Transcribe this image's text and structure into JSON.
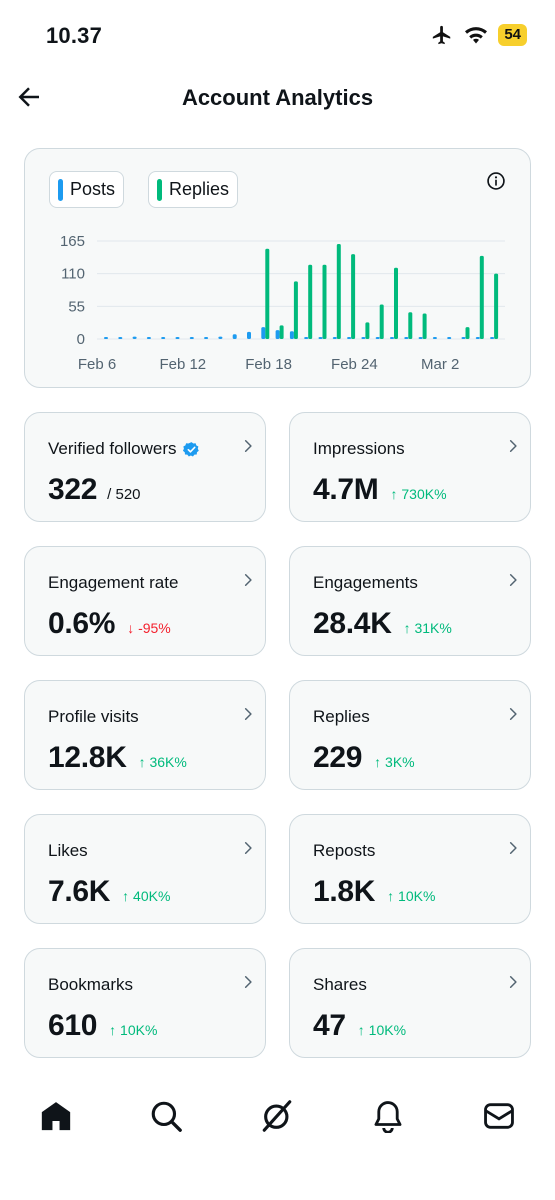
{
  "status_bar": {
    "time": "10.37",
    "battery": "54",
    "icons": [
      "airplane-icon",
      "wifi-icon",
      "battery-icon"
    ]
  },
  "header": {
    "title": "Account Analytics",
    "back_icon": "arrow-left-icon"
  },
  "chart_data": {
    "type": "bar",
    "title": "",
    "xlabel": "",
    "ylabel": "",
    "legend": [
      "Posts",
      "Replies"
    ],
    "y_ticks": [
      "165",
      "110",
      "55",
      "0"
    ],
    "ylim": [
      0,
      165
    ],
    "x_tick_labels": [
      "Feb 6",
      "Feb 12",
      "Feb 18",
      "Feb 24",
      "Mar 2"
    ],
    "categories": [
      "Feb 6",
      "Feb 7",
      "Feb 8",
      "Feb 9",
      "Feb 10",
      "Feb 11",
      "Feb 12",
      "Feb 13",
      "Feb 14",
      "Feb 15",
      "Feb 16",
      "Feb 17",
      "Feb 18",
      "Feb 19",
      "Feb 20",
      "Feb 21",
      "Feb 22",
      "Feb 23",
      "Feb 24",
      "Feb 25",
      "Feb 26",
      "Feb 27",
      "Feb 28",
      "Mar 1",
      "Mar 2",
      "Mar 3",
      "Mar 4",
      "Mar 5"
    ],
    "series": [
      {
        "name": "Posts",
        "color": "#1d9bf0",
        "values": [
          2,
          2,
          4,
          2,
          3,
          3,
          3,
          3,
          4,
          8,
          12,
          20,
          15,
          13,
          3,
          2,
          2,
          2,
          2,
          2,
          2,
          2,
          2,
          2,
          2,
          2,
          2,
          2
        ]
      },
      {
        "name": "Replies",
        "color": "#00ba7c",
        "values": [
          0,
          0,
          0,
          0,
          0,
          0,
          0,
          0,
          0,
          0,
          0,
          152,
          23,
          97,
          125,
          125,
          160,
          143,
          28,
          58,
          120,
          45,
          43,
          0,
          0,
          20,
          140,
          110
        ]
      }
    ],
    "grid": true
  },
  "chart": {
    "legend_posts": "Posts",
    "legend_replies": "Replies",
    "posts_color": "#1d9bf0",
    "replies_color": "#00ba7c"
  },
  "stats": [
    {
      "label": "Verified followers",
      "value": "322",
      "sub": "/ 520",
      "change": "",
      "direction": "none",
      "verified_badge": true
    },
    {
      "label": "Impressions",
      "value": "4.7M",
      "sub": "",
      "change": "↑ 730K%",
      "direction": "up"
    },
    {
      "label": "Engagement rate",
      "value": "0.6%",
      "sub": "",
      "change": "↓ -95%",
      "direction": "down"
    },
    {
      "label": "Engagements",
      "value": "28.4K",
      "sub": "",
      "change": "↑ 31K%",
      "direction": "up"
    },
    {
      "label": "Profile visits",
      "value": "12.8K",
      "sub": "",
      "change": "↑ 36K%",
      "direction": "up"
    },
    {
      "label": "Replies",
      "value": "229",
      "sub": "",
      "change": "↑ 3K%",
      "direction": "up"
    },
    {
      "label": "Likes",
      "value": "7.6K",
      "sub": "",
      "change": "↑ 40K%",
      "direction": "up"
    },
    {
      "label": "Reposts",
      "value": "1.8K",
      "sub": "",
      "change": "↑ 10K%",
      "direction": "up"
    },
    {
      "label": "Bookmarks",
      "value": "610",
      "sub": "",
      "change": "↑ 10K%",
      "direction": "up"
    },
    {
      "label": "Shares",
      "value": "47",
      "sub": "",
      "change": "↑ 10K%",
      "direction": "up"
    }
  ],
  "bottom_nav": [
    "home-icon",
    "search-icon",
    "grok-icon",
    "notifications-icon",
    "messages-icon"
  ],
  "colors": {
    "up": "#00ba7c",
    "down": "#f4212e",
    "verified": "#1d9bf0",
    "card_border": "#cfd9de",
    "card_bg": "#f7f9f9"
  }
}
